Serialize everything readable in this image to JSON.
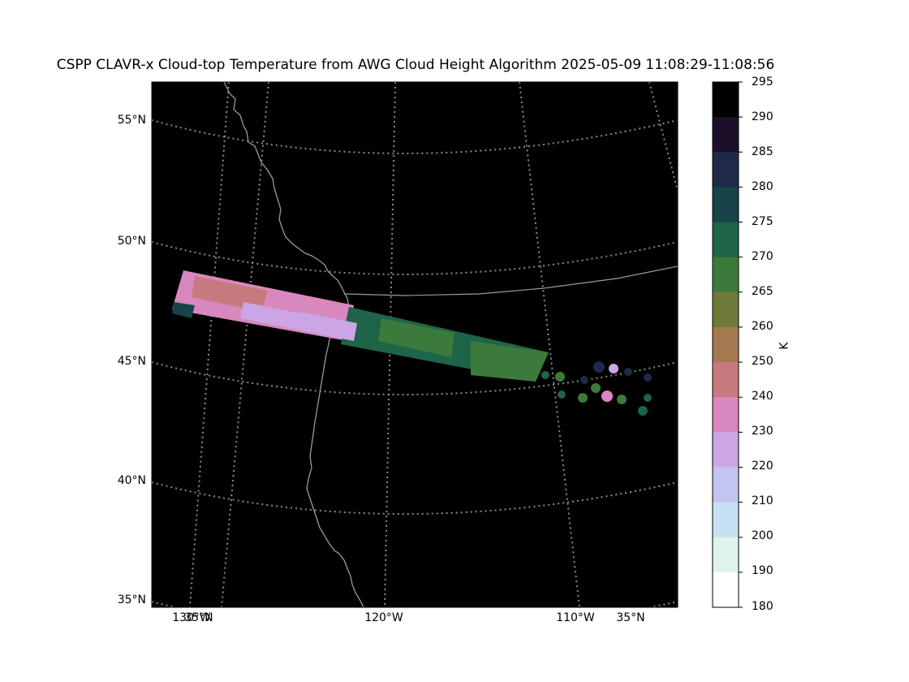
{
  "title": "CSPP CLAVR-x Cloud-top Temperature from AWG Cloud Height Algorithm 2025-05-09 11:08:29-11:08:56",
  "map": {
    "background_color": "#000000",
    "graticule_color": "#8c8c8c",
    "coastline_color": "#9a9a9a",
    "lat_labels": [
      "55°N",
      "50°N",
      "45°N",
      "40°N",
      "35°N"
    ],
    "lon_labels": [
      "130°W",
      "35°N",
      "120°W",
      "110°W",
      "35°N"
    ]
  },
  "colorbar": {
    "unit": "K",
    "ticks": [
      "295",
      "290",
      "285",
      "280",
      "275",
      "270",
      "265",
      "260",
      "250",
      "240",
      "230",
      "220",
      "210",
      "200",
      "190",
      "180"
    ],
    "colors": [
      "#000000",
      "#1c1028",
      "#1f2a4a",
      "#164448",
      "#1e6448",
      "#3c7a3c",
      "#6e7a36",
      "#a67a50",
      "#c77a7e",
      "#d888be",
      "#cca6e4",
      "#c4c4f2",
      "#c6e2f2",
      "#dff4ee",
      "#ffffff"
    ]
  },
  "swath": {
    "description_colors": {
      "pink": "#d888be",
      "rose": "#c77a7e",
      "lavender": "#cca6e4",
      "dark_green": "#1e6448",
      "green": "#3c7a3c",
      "teal": "#164448",
      "navy": "#1f2a4a"
    }
  }
}
